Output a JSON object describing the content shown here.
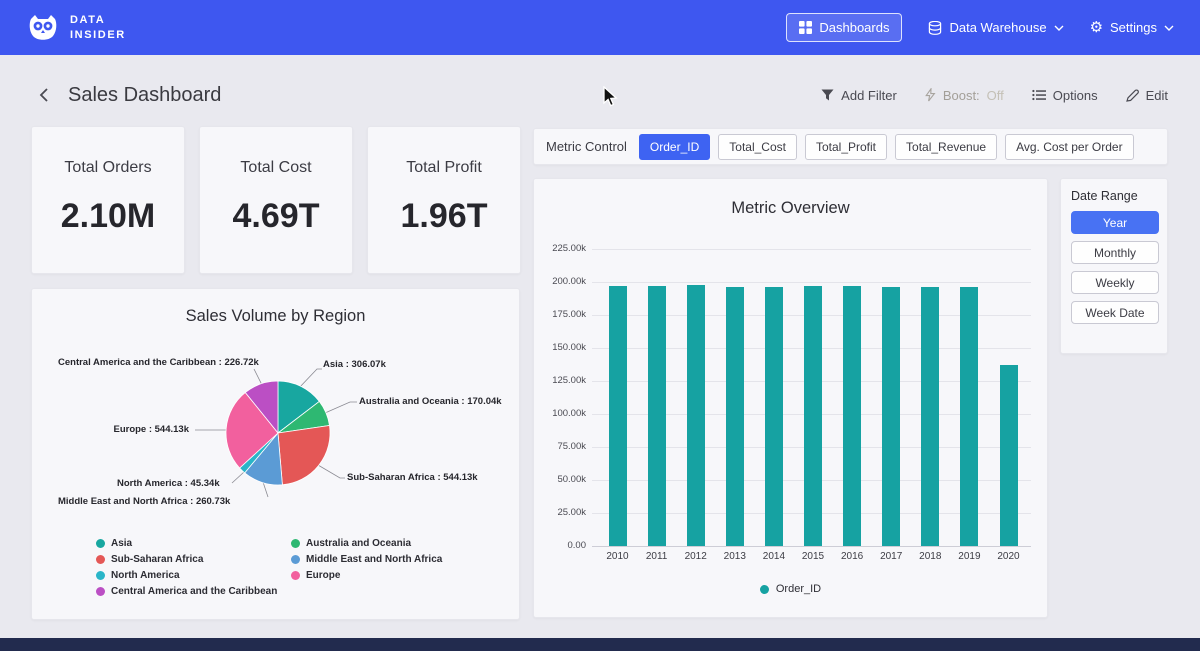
{
  "navbar": {
    "brand_line1": "DATA",
    "brand_line2": "INSIDER",
    "dashboards_label": "Dashboards",
    "warehouse_label": "Data Warehouse",
    "settings_label": "Settings"
  },
  "header": {
    "title": "Sales Dashboard",
    "add_filter": "Add Filter",
    "boost_label": "Boost:",
    "boost_state": "Off",
    "options": "Options",
    "edit": "Edit"
  },
  "kpis": [
    {
      "label": "Total Orders",
      "value": "2.10M"
    },
    {
      "label": "Total Cost",
      "value": "4.69T"
    },
    {
      "label": "Total Profit",
      "value": "1.96T"
    }
  ],
  "metric_control": {
    "label": "Metric Control",
    "options": [
      {
        "label": "Order_ID",
        "selected": true
      },
      {
        "label": "Total_Cost",
        "selected": false
      },
      {
        "label": "Total_Profit",
        "selected": false
      },
      {
        "label": "Total_Revenue",
        "selected": false
      },
      {
        "label": "Avg. Cost per Order",
        "selected": false
      }
    ]
  },
  "date_range": {
    "label": "Date Range",
    "options": [
      {
        "label": "Year",
        "selected": true
      },
      {
        "label": "Monthly",
        "selected": false
      },
      {
        "label": "Weekly",
        "selected": false
      },
      {
        "label": "Week Date",
        "selected": false
      }
    ]
  },
  "colors": {
    "accent_blue": "#3e63f2",
    "bar_teal": "#16a2a2",
    "navbar_blue": "#3e57f0"
  },
  "chart_data": [
    {
      "type": "bar",
      "title": "Metric Overview",
      "categories": [
        "2010",
        "2011",
        "2012",
        "2013",
        "2014",
        "2015",
        "2016",
        "2017",
        "2018",
        "2019",
        "2020"
      ],
      "series": [
        {
          "name": "Order_ID",
          "values": [
            197000,
            197200,
            197500,
            196300,
            196500,
            197200,
            196800,
            196500,
            196200,
            196500,
            137000
          ]
        }
      ],
      "ylim": [
        0,
        225000
      ],
      "ytick_labels": [
        "225.00k",
        "200.00k",
        "175.00k",
        "150.00k",
        "125.00k",
        "100.00k",
        "75.00k",
        "50.00k",
        "25.00k",
        "0.00"
      ],
      "color": "#16a2a2",
      "legend_position": "bottom"
    },
    {
      "type": "pie",
      "title": "Sales Volume by Region",
      "slices": [
        {
          "name": "Asia",
          "value": 306070,
          "label": "Asia : 306.07k",
          "color": "#18a7a0"
        },
        {
          "name": "Australia and Oceania",
          "value": 170040,
          "label": "Australia and Oceania : 170.04k",
          "color": "#2eb872"
        },
        {
          "name": "Sub-Saharan Africa",
          "value": 544130,
          "label": "Sub-Saharan Africa : 544.13k",
          "color": "#e45756"
        },
        {
          "name": "Middle East and North Africa",
          "value": 260730,
          "label": "Middle East and North Africa : 260.73k",
          "color": "#5b9bd5"
        },
        {
          "name": "North America",
          "value": 45340,
          "label": "North America : 45.34k",
          "color": "#2ab5c8"
        },
        {
          "name": "Europe",
          "value": 544130,
          "label": "Europe : 544.13k",
          "color": "#f2609e"
        },
        {
          "name": "Central America and the Caribbean",
          "value": 226720,
          "label": "Central America and the Caribbean : 226.72k",
          "color": "#bb4fc4"
        }
      ],
      "legend_columns": [
        [
          0,
          2,
          4,
          6
        ],
        [
          1,
          3,
          5
        ]
      ]
    }
  ]
}
